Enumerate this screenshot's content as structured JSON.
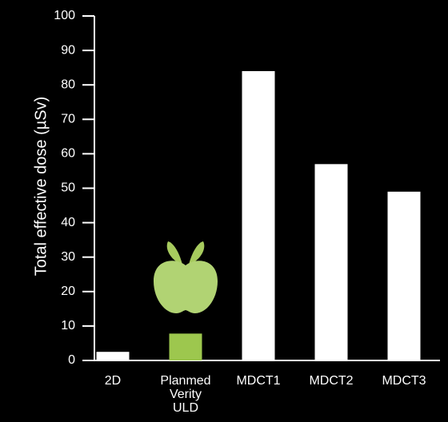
{
  "chart_data": {
    "type": "bar",
    "title": "",
    "xlabel": "",
    "ylabel": "Total effective dose (µSv)",
    "ylim": [
      0,
      100
    ],
    "yticks": [
      0,
      10,
      20,
      30,
      40,
      50,
      60,
      70,
      80,
      90,
      100
    ],
    "categories": [
      [
        "2D"
      ],
      [
        "Planmed",
        "Verity",
        "ULD"
      ],
      [
        "MDCT1"
      ],
      [
        "MDCT2"
      ],
      [
        "MDCT3"
      ]
    ],
    "values": [
      2.5,
      7.8,
      84,
      57,
      49
    ],
    "grid": false,
    "legend": "none",
    "colors": {
      "background": "#000000",
      "axis": "#ffffff",
      "bar": "#ffffff",
      "highlight_bar": "#9dc74e",
      "apple_body": "#b1d373",
      "apple_leaf": "#a7cb5e"
    },
    "highlight_index": 1,
    "icons": [
      "apple-icon"
    ]
  }
}
